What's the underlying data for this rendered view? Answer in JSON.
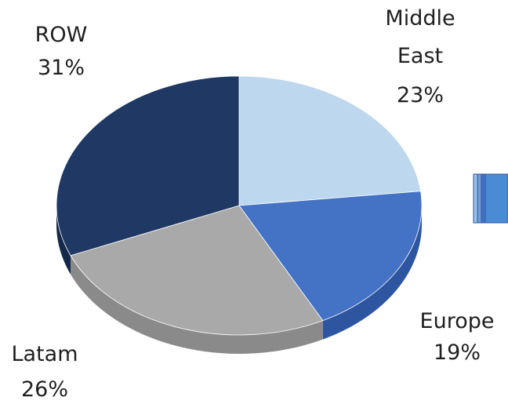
{
  "chart_data": {
    "type": "pie",
    "title": "",
    "style": "3d",
    "slices": [
      {
        "label_lines": [
          "Middle",
          "East"
        ],
        "percent_label": "23%",
        "value": 23,
        "color": "#bdd7ee",
        "side_color": "#9fbcd6"
      },
      {
        "label_lines": [
          "Europe"
        ],
        "percent_label": "19%",
        "value": 19,
        "color": "#4472c4",
        "side_color": "#2e56a0"
      },
      {
        "label_lines": [
          "Latam"
        ],
        "percent_label": "26%",
        "value": 26,
        "color": "#a9a9a9",
        "side_color": "#8a8a8a"
      },
      {
        "label_lines": [
          "ROW"
        ],
        "percent_label": "31%",
        "value": 31,
        "color": "#1f3864",
        "side_color": "#15284a"
      }
    ],
    "legend": {
      "color_blocks": [
        "#9dc3e6",
        "#6f9fd8",
        "#4472c4"
      ]
    }
  }
}
